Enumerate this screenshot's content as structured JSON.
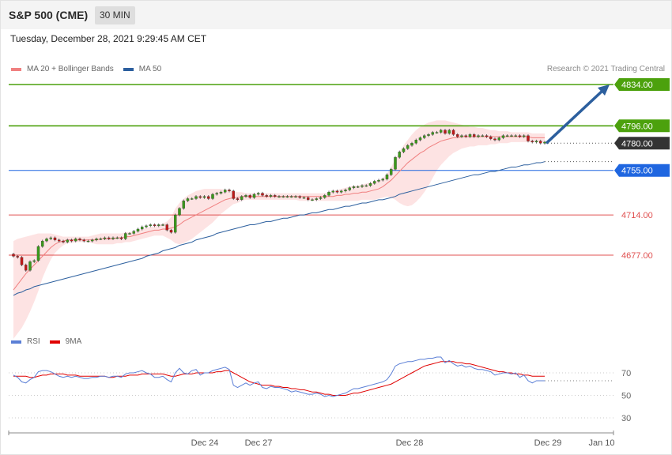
{
  "header": {
    "title": "S&P 500 (CME)",
    "timeframe": "30 MIN",
    "datetime": "Tuesday, December 28, 2021 9:29:45 AM CET",
    "copyright": "Research © 2021 Trading Central"
  },
  "legend_main": [
    {
      "label": "MA 20 + Bollinger Bands",
      "color": "#f08080"
    },
    {
      "label": "MA 50",
      "color": "#2c5f9e"
    }
  ],
  "legend_rsi": [
    {
      "label": "RSI",
      "color": "#5b7fd6"
    },
    {
      "label": "9MA",
      "color": "#e00000"
    }
  ],
  "colors": {
    "resistance": "#4ca10d",
    "support": "#e05050",
    "current": "#333333",
    "ma50_level": "#1f66e0",
    "arrow": "#2c5f9e",
    "candle_up": "#3a9a1a",
    "candle_down": "#c01818",
    "band_fill": "#fde0e0"
  },
  "chart_data": [
    {
      "type": "candlestick",
      "title": "S&P 500 (CME)",
      "timeframe": "30 MIN",
      "y_range": [
        4600,
        4860
      ],
      "x_tick_labels": [
        "Dec 24",
        "Dec 27",
        "Dec 28",
        "Dec 29",
        "Jan 10"
      ],
      "levels": [
        {
          "value": 4834.0,
          "label": "4834.00",
          "kind": "resistance"
        },
        {
          "value": 4796.0,
          "label": "4796.00",
          "kind": "resistance"
        },
        {
          "value": 4780.0,
          "label": "4780.00",
          "kind": "current"
        },
        {
          "value": 4755.0,
          "label": "4755.00",
          "kind": "ma50"
        },
        {
          "value": 4714.0,
          "label": "4714.00",
          "kind": "support"
        },
        {
          "value": 4677.0,
          "label": "4677.00",
          "kind": "support"
        }
      ],
      "close": [
        4676,
        4675,
        4668,
        4663,
        4671,
        4672,
        4685,
        4690,
        4692,
        4693,
        4691,
        4690,
        4689,
        4691,
        4690,
        4692,
        4691,
        4690,
        4690,
        4691,
        4692,
        4692,
        4693,
        4692,
        4693,
        4693,
        4692,
        4697,
        4697,
        4699,
        4701,
        4703,
        4704,
        4705,
        4704,
        4705,
        4705,
        4700,
        4698,
        4714,
        4720,
        4727,
        4729,
        4729,
        4731,
        4730,
        4731,
        4729,
        4733,
        4734,
        4735,
        4737,
        4736,
        4729,
        4728,
        4731,
        4732,
        4730,
        4733,
        4734,
        4732,
        4731,
        4732,
        4731,
        4731,
        4731,
        4731,
        4731,
        4731,
        4730,
        4730,
        4728,
        4728,
        4729,
        4730,
        4732,
        4735,
        4736,
        4735,
        4736,
        4737,
        4739,
        4740,
        4740,
        4741,
        4741,
        4743,
        4745,
        4746,
        4747,
        4751,
        4756,
        4767,
        4772,
        4775,
        4778,
        4780,
        4783,
        4785,
        4787,
        4788,
        4790,
        4790,
        4792,
        4789,
        4792,
        4788,
        4786,
        4787,
        4786,
        4788,
        4786,
        4787,
        4787,
        4786,
        4784,
        4783,
        4785,
        4787,
        4787,
        4787,
        4787,
        4786,
        4787,
        4782,
        4781,
        4782,
        4780,
        4781
      ],
      "ma20": [
        4645,
        4650,
        4655,
        4660,
        4664,
        4668,
        4672,
        4676,
        4680,
        4684,
        4687,
        4689,
        4690,
        4691,
        4691,
        4691,
        4691,
        4691,
        4691,
        4691,
        4691,
        4692,
        4692,
        4692,
        4692,
        4693,
        4693,
        4694,
        4694,
        4695,
        4696,
        4697,
        4698,
        4699,
        4700,
        4700,
        4701,
        4701,
        4702,
        4703,
        4705,
        4708,
        4710,
        4712,
        4714,
        4716,
        4718,
        4720,
        4722,
        4724,
        4726,
        4728,
        4729,
        4730,
        4730,
        4731,
        4731,
        4731,
        4731,
        4731,
        4731,
        4731,
        4731,
        4731,
        4731,
        4731,
        4731,
        4731,
        4731,
        4731,
        4731,
        4731,
        4731,
        4731,
        4731,
        4731,
        4731,
        4731,
        4732,
        4732,
        4733,
        4733,
        4734,
        4734,
        4735,
        4735,
        4736,
        4737,
        4738,
        4740,
        4743,
        4746,
        4750,
        4754,
        4758,
        4762,
        4765,
        4768,
        4771,
        4773,
        4776,
        4778,
        4780,
        4782,
        4783,
        4784,
        4785,
        4785,
        4786,
        4786,
        4786,
        4786,
        4786,
        4786,
        4786,
        4786,
        4786,
        4786,
        4786,
        4786,
        4786,
        4786,
        4786,
        4786,
        4786,
        4785,
        4785,
        4785,
        4785
      ],
      "bb_upper": [
        4690,
        4692,
        4693,
        4694,
        4695,
        4696,
        4697,
        4697,
        4697,
        4697,
        4696,
        4695,
        4694,
        4694,
        4694,
        4694,
        4694,
        4694,
        4694,
        4695,
        4696,
        4697,
        4697,
        4697,
        4697,
        4697,
        4697,
        4698,
        4698,
        4699,
        4700,
        4701,
        4702,
        4703,
        4704,
        4705,
        4706,
        4708,
        4712,
        4720,
        4725,
        4729,
        4732,
        4734,
        4736,
        4737,
        4738,
        4738,
        4738,
        4738,
        4738,
        4737,
        4737,
        4736,
        4735,
        4735,
        4734,
        4734,
        4734,
        4734,
        4734,
        4734,
        4734,
        4734,
        4734,
        4734,
        4734,
        4734,
        4734,
        4734,
        4734,
        4734,
        4734,
        4734,
        4734,
        4734,
        4735,
        4736,
        4737,
        4738,
        4739,
        4740,
        4741,
        4741,
        4742,
        4743,
        4744,
        4745,
        4746,
        4748,
        4752,
        4758,
        4765,
        4772,
        4778,
        4783,
        4788,
        4792,
        4795,
        4797,
        4799,
        4800,
        4801,
        4801,
        4801,
        4800,
        4799,
        4798,
        4797,
        4796,
        4795,
        4795,
        4794,
        4794,
        4793,
        4792,
        4792,
        4791,
        4791,
        4791,
        4790,
        4790,
        4790,
        4790,
        4790,
        4789,
        4789,
        4789,
        4789
      ],
      "bb_lower": [
        4600,
        4605,
        4610,
        4617,
        4625,
        4634,
        4644,
        4656,
        4665,
        4673,
        4679,
        4683,
        4686,
        4688,
        4688,
        4689,
        4689,
        4689,
        4689,
        4688,
        4687,
        4687,
        4687,
        4687,
        4687,
        4688,
        4688,
        4689,
        4689,
        4690,
        4691,
        4692,
        4693,
        4694,
        4695,
        4695,
        4695,
        4693,
        4691,
        4688,
        4687,
        4688,
        4690,
        4692,
        4695,
        4698,
        4701,
        4704,
        4707,
        4711,
        4715,
        4718,
        4721,
        4724,
        4725,
        4727,
        4728,
        4728,
        4728,
        4728,
        4728,
        4728,
        4728,
        4728,
        4728,
        4728,
        4728,
        4728,
        4728,
        4727,
        4727,
        4727,
        4727,
        4727,
        4727,
        4727,
        4727,
        4727,
        4727,
        4727,
        4727,
        4727,
        4727,
        4727,
        4728,
        4728,
        4728,
        4728,
        4729,
        4730,
        4731,
        4730,
        4728,
        4725,
        4723,
        4722,
        4723,
        4726,
        4730,
        4735,
        4741,
        4748,
        4755,
        4760,
        4764,
        4768,
        4771,
        4773,
        4775,
        4776,
        4777,
        4777,
        4778,
        4778,
        4778,
        4779,
        4779,
        4780,
        4780,
        4780,
        4781,
        4781,
        4781,
        4781,
        4781,
        4781,
        4781,
        4781,
        4781
      ],
      "ma50": [
        4640,
        4642,
        4643,
        4645,
        4646,
        4648,
        4649,
        4650,
        4651,
        4652,
        4653,
        4654,
        4655,
        4656,
        4657,
        4658,
        4659,
        4660,
        4661,
        4662,
        4663,
        4664,
        4665,
        4666,
        4667,
        4668,
        4669,
        4670,
        4671,
        4672,
        4673,
        4674,
        4676,
        4677,
        4678,
        4679,
        4681,
        4682,
        4683,
        4684,
        4686,
        4687,
        4688,
        4689,
        4691,
        4692,
        4693,
        4694,
        4695,
        4697,
        4698,
        4699,
        4700,
        4701,
        4702,
        4703,
        4704,
        4705,
        4705,
        4706,
        4707,
        4708,
        4708,
        4709,
        4710,
        4711,
        4711,
        4712,
        4713,
        4714,
        4714,
        4715,
        4716,
        4716,
        4717,
        4718,
        4719,
        4719,
        4720,
        4721,
        4722,
        4722,
        4723,
        4724,
        4725,
        4725,
        4726,
        4727,
        4728,
        4728,
        4729,
        4730,
        4731,
        4733,
        4734,
        4735,
        4736,
        4737,
        4738,
        4739,
        4740,
        4741,
        4742,
        4743,
        4744,
        4745,
        4746,
        4747,
        4748,
        4749,
        4750,
        4751,
        4751,
        4752,
        4753,
        4754,
        4754,
        4755,
        4756,
        4757,
        4758,
        4758,
        4759,
        4760,
        4760,
        4761,
        4762,
        4762,
        4763
      ],
      "forecast_arrow": {
        "from": 4780,
        "to": 4834
      }
    },
    {
      "type": "line",
      "title": "RSI",
      "y_range": [
        20,
        85
      ],
      "y_ticks": [
        70,
        50,
        30
      ],
      "series": [
        {
          "name": "RSI",
          "values": [
            68,
            66,
            62,
            61,
            64,
            66,
            71,
            72,
            72,
            71,
            69,
            67,
            66,
            67,
            66,
            67,
            66,
            65,
            65,
            66,
            66,
            67,
            67,
            66,
            67,
            67,
            66,
            69,
            70,
            70,
            71,
            72,
            70,
            69,
            66,
            66,
            67,
            64,
            62,
            70,
            74,
            70,
            69,
            72,
            73,
            68,
            70,
            70,
            72,
            73,
            74,
            75,
            73,
            59,
            57,
            59,
            61,
            59,
            61,
            62,
            57,
            56,
            58,
            57,
            57,
            56,
            55,
            53,
            54,
            53,
            52,
            51,
            51,
            52,
            51,
            49,
            50,
            49,
            50,
            51,
            52,
            54,
            56,
            56,
            57,
            58,
            59,
            60,
            61,
            62,
            64,
            69,
            76,
            78,
            79,
            80,
            80,
            81,
            82,
            82,
            83,
            83,
            84,
            84,
            79,
            81,
            78,
            76,
            77,
            75,
            76,
            74,
            73,
            73,
            72,
            71,
            68,
            69,
            70,
            70,
            69,
            70,
            66,
            68,
            63,
            61,
            63,
            63,
            63
          ]
        },
        {
          "name": "9MA",
          "values": [
            67,
            67,
            67,
            67,
            66,
            66,
            67,
            68,
            68,
            69,
            69,
            69,
            69,
            68,
            68,
            68,
            67,
            67,
            67,
            67,
            67,
            67,
            67,
            66,
            66,
            67,
            67,
            67,
            68,
            68,
            68,
            69,
            69,
            69,
            69,
            69,
            69,
            68,
            67,
            67,
            68,
            69,
            69,
            69,
            70,
            70,
            70,
            70,
            70,
            71,
            71,
            72,
            72,
            70,
            68,
            66,
            64,
            62,
            61,
            60,
            59,
            59,
            59,
            58,
            58,
            57,
            57,
            56,
            56,
            55,
            55,
            54,
            53,
            53,
            52,
            51,
            51,
            50,
            50,
            50,
            50,
            51,
            52,
            52,
            53,
            54,
            55,
            56,
            57,
            58,
            59,
            60,
            62,
            64,
            66,
            68,
            70,
            72,
            74,
            76,
            77,
            78,
            79,
            80,
            80,
            80,
            80,
            79,
            79,
            78,
            78,
            77,
            76,
            75,
            74,
            73,
            72,
            71,
            71,
            70,
            70,
            69,
            69,
            68,
            68,
            67,
            67,
            67,
            67
          ]
        }
      ]
    }
  ]
}
